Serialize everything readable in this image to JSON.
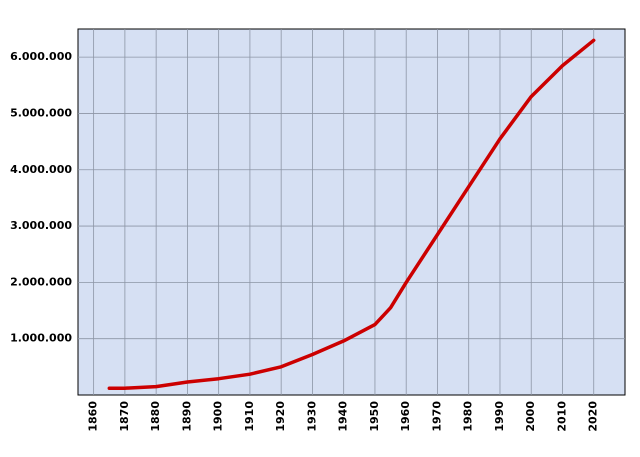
{
  "chart_data": {
    "type": "line",
    "x": [
      1865,
      1870,
      1880,
      1890,
      1900,
      1910,
      1920,
      1930,
      1940,
      1950,
      1955,
      1960,
      1970,
      1980,
      1990,
      2000,
      2010,
      2020
    ],
    "series": [
      {
        "color": "#cc0000",
        "values": [
          120000,
          120000,
          150000,
          230000,
          290000,
          370000,
          500000,
          720000,
          960000,
          1250000,
          1550000,
          2000000,
          2850000,
          3700000,
          4550000,
          5300000,
          5850000,
          6300000
        ]
      }
    ],
    "xlim": [
      1855,
      2030
    ],
    "xticks": [
      1860,
      1870,
      1880,
      1890,
      1900,
      1910,
      1920,
      1930,
      1940,
      1950,
      1960,
      1970,
      1980,
      1990,
      2000,
      2010,
      2020
    ],
    "ylim": [
      0,
      6500000
    ],
    "yticks": [
      {
        "value": 1000000,
        "label": "1.000.000"
      },
      {
        "value": 2000000,
        "label": "2.000.000"
      },
      {
        "value": 3000000,
        "label": "3.000.000"
      },
      {
        "value": 4000000,
        "label": "4.000.000"
      },
      {
        "value": 5000000,
        "label": "5.000.000"
      },
      {
        "value": 6000000,
        "label": "6.000.000"
      }
    ],
    "grid": true,
    "background": "#d6e0f3"
  }
}
